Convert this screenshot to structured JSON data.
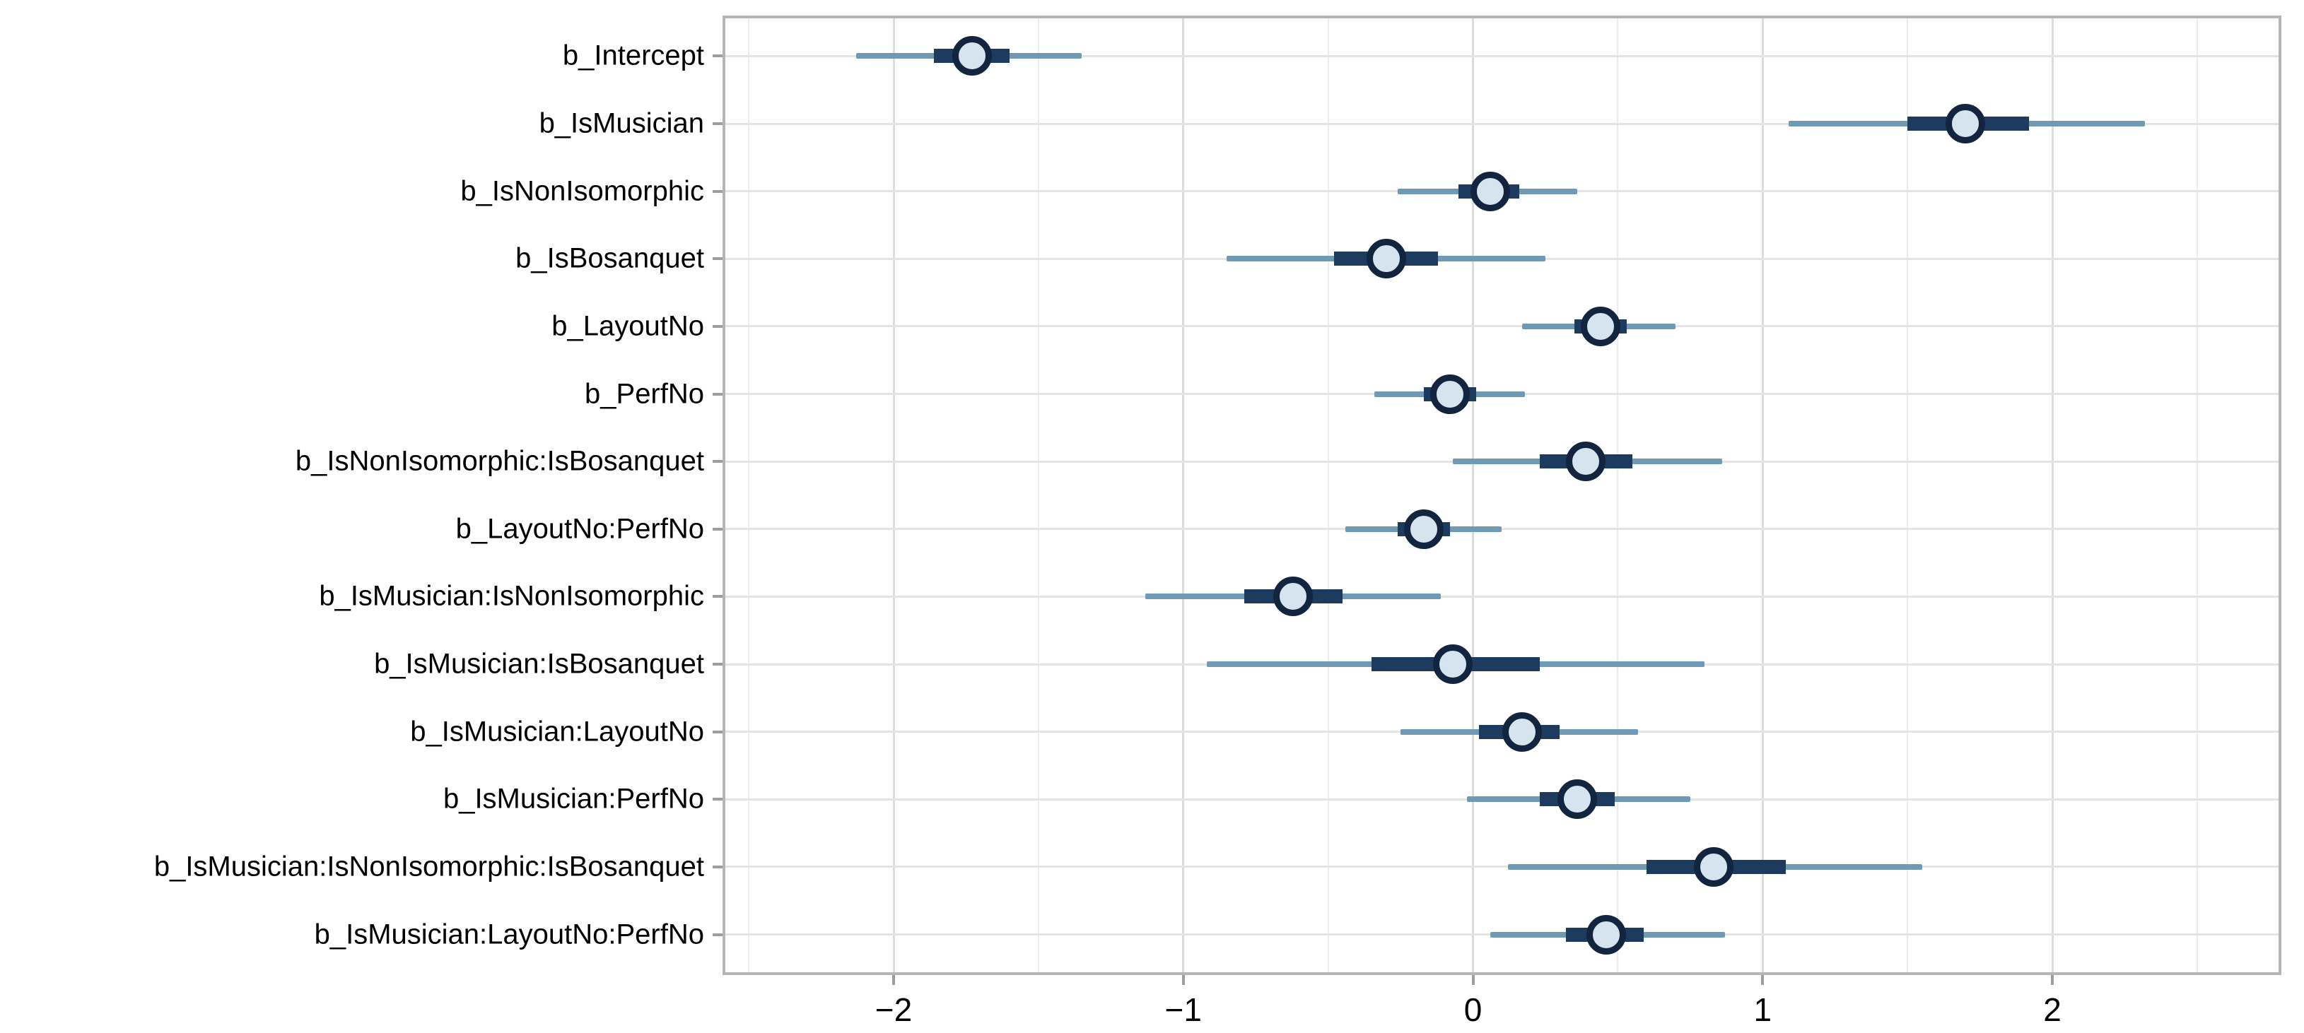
{
  "chart_data": {
    "type": "scatter",
    "subtype": "coefficient-interval-forest-plot",
    "title": "",
    "xlabel": "",
    "ylabel": "",
    "grid": {
      "vertical_major": true,
      "vertical_minor": true,
      "horizontal_row_lines": true
    },
    "legend": null,
    "xlim": [
      -2.59,
      2.79
    ],
    "x_axis": {
      "tick_values": [
        -2,
        -1,
        0,
        1,
        2
      ],
      "tick_labels": [
        "−2",
        "−1",
        "0",
        "1",
        "2"
      ],
      "minor_tick_values": [
        -2.5,
        -1.5,
        -0.5,
        0.5,
        1.5,
        2.5
      ]
    },
    "rows": [
      {
        "label": "b_Intercept",
        "outer": [
          -2.13,
          -1.35
        ],
        "inner": [
          -1.86,
          -1.6
        ],
        "point": -1.73
      },
      {
        "label": "b_IsMusician",
        "outer": [
          1.09,
          2.32
        ],
        "inner": [
          1.5,
          1.92
        ],
        "point": 1.7
      },
      {
        "label": "b_IsNonIsomorphic",
        "outer": [
          -0.26,
          0.36
        ],
        "inner": [
          -0.05,
          0.16
        ],
        "point": 0.06
      },
      {
        "label": "b_IsBosanquet",
        "outer": [
          -0.85,
          0.25
        ],
        "inner": [
          -0.48,
          -0.12
        ],
        "point": -0.3
      },
      {
        "label": "b_LayoutNo",
        "outer": [
          0.17,
          0.7
        ],
        "inner": [
          0.35,
          0.53
        ],
        "point": 0.44
      },
      {
        "label": "b_PerfNo",
        "outer": [
          -0.34,
          0.18
        ],
        "inner": [
          -0.17,
          0.01
        ],
        "point": -0.08
      },
      {
        "label": "b_IsNonIsomorphic:IsBosanquet",
        "outer": [
          -0.07,
          0.86
        ],
        "inner": [
          0.23,
          0.55
        ],
        "point": 0.39
      },
      {
        "label": "b_LayoutNo:PerfNo",
        "outer": [
          -0.44,
          0.1
        ],
        "inner": [
          -0.26,
          -0.08
        ],
        "point": -0.17
      },
      {
        "label": "b_IsMusician:IsNonIsomorphic",
        "outer": [
          -1.13,
          -0.11
        ],
        "inner": [
          -0.79,
          -0.45
        ],
        "point": -0.62
      },
      {
        "label": "b_IsMusician:IsBosanquet",
        "outer": [
          -0.92,
          0.8
        ],
        "inner": [
          -0.35,
          0.23
        ],
        "point": -0.07
      },
      {
        "label": "b_IsMusician:LayoutNo",
        "outer": [
          -0.25,
          0.57
        ],
        "inner": [
          0.02,
          0.3
        ],
        "point": 0.17
      },
      {
        "label": "b_IsMusician:PerfNo",
        "outer": [
          -0.02,
          0.75
        ],
        "inner": [
          0.23,
          0.49
        ],
        "point": 0.36
      },
      {
        "label": "b_IsMusician:IsNonIsomorphic:IsBosanquet",
        "outer": [
          0.12,
          1.55
        ],
        "inner": [
          0.6,
          1.08
        ],
        "point": 0.83
      },
      {
        "label": "b_IsMusician:LayoutNo:PerfNo",
        "outer": [
          0.06,
          0.87
        ],
        "inner": [
          0.32,
          0.59
        ],
        "point": 0.46
      }
    ],
    "colors": {
      "outer_interval_line": "#6f9ab5",
      "inner_interval_bar": "#1d3a5f",
      "point_fill": "#d6e4f0",
      "point_border": "#13243f",
      "gridline_major": "#dcdcdc",
      "gridline_minor": "#ececec",
      "row_gridline": "#e4e4e4",
      "panel_border": "#b5b5b5",
      "tick_mark": "#9e9e9e",
      "text": "#000000",
      "background": "#ffffff"
    }
  }
}
